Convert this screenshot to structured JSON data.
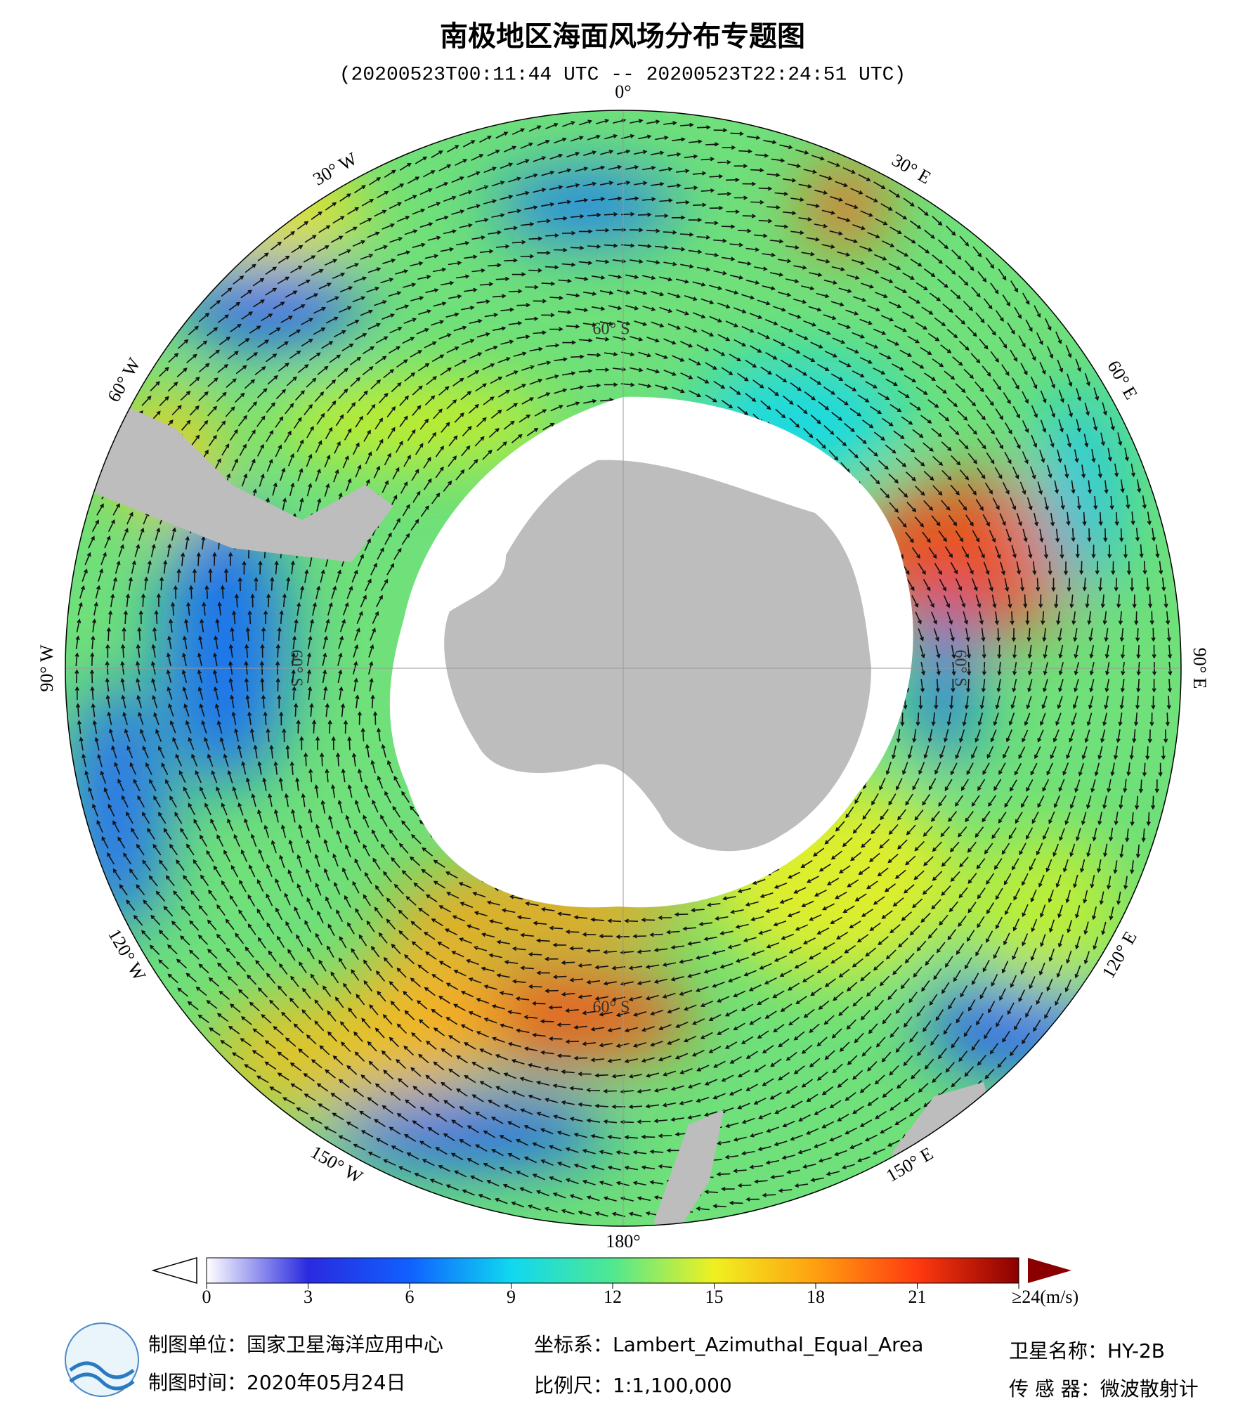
{
  "header": {
    "title": "南极地区海面风场分布专题图",
    "subtitle": "(20200523T00:11:44 UTC -- 20200523T22:24:51 UTC)"
  },
  "map": {
    "lon_labels": [
      "0°",
      "30° E",
      "60° E",
      "90° E",
      "120° E",
      "150° E",
      "180°",
      "150° W",
      "120° W",
      "90° W",
      "60° W",
      "30° W"
    ],
    "lat_label": "60° S"
  },
  "colorbar": {
    "range": [
      0,
      24
    ],
    "ticks": [
      0,
      3,
      6,
      9,
      12,
      15,
      18,
      21,
      {
        "value": 24,
        "label": "≥24(m/s)"
      }
    ],
    "colors": [
      "#ffffff",
      "#2a2adf",
      "#1060ff",
      "#10d8f0",
      "#50e890",
      "#f0f020",
      "#ffa010",
      "#ff3a10",
      "#8a0000"
    ]
  },
  "footer": {
    "org": "制图单位：国家卫星海洋应用中心",
    "date": "制图时间：2020年05月24日",
    "crs": "坐标系：Lambert_Azimuthal_Equal_Area",
    "scale": "比例尺：1:1,100,000",
    "satellite": "卫星名称：HY-2B",
    "sensor": "传 感 器：微波散射计"
  }
}
